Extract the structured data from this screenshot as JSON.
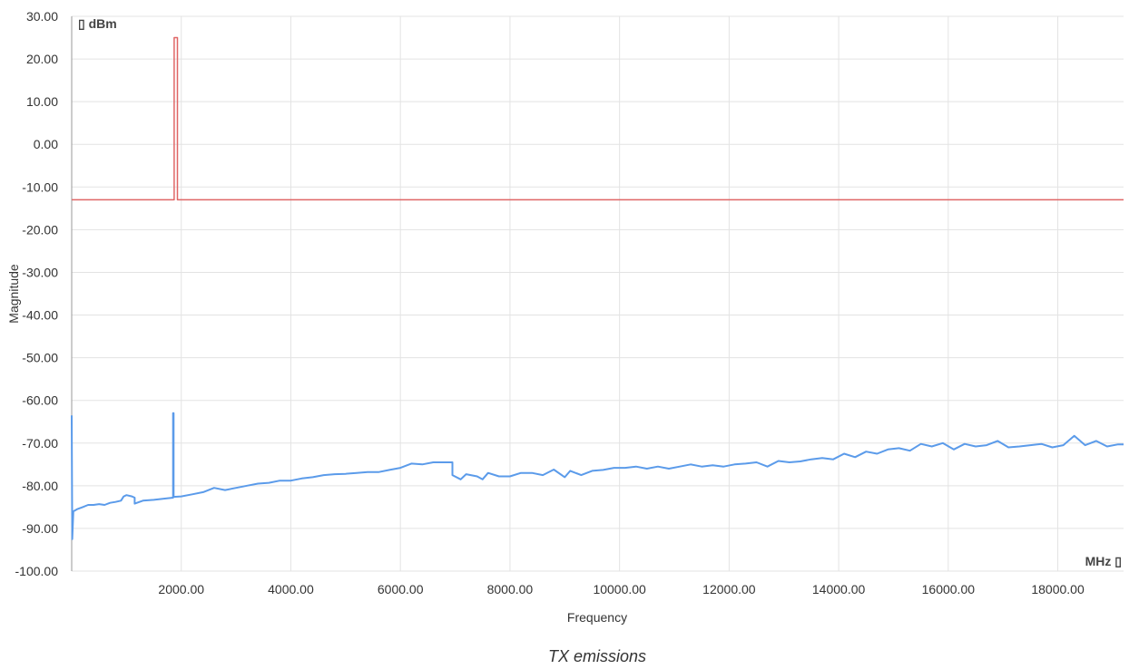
{
  "chart_data": {
    "type": "line",
    "caption": "TX emissions",
    "xlabel": "Frequency",
    "ylabel": "Magnitude",
    "y_unit": "▯ dBm",
    "x_unit": "MHz ▯",
    "xlim": [
      0,
      19200
    ],
    "ylim": [
      -100,
      30
    ],
    "grid": true,
    "x_ticks": [
      2000,
      4000,
      6000,
      8000,
      10000,
      12000,
      14000,
      16000,
      18000
    ],
    "x_tick_labels": [
      "2000.00",
      "4000.00",
      "6000.00",
      "8000.00",
      "10000.00",
      "12000.00",
      "14000.00",
      "16000.00",
      "18000.00"
    ],
    "y_ticks": [
      30,
      20,
      10,
      0,
      -10,
      -20,
      -30,
      -40,
      -50,
      -60,
      -70,
      -80,
      -90,
      -100
    ],
    "y_tick_labels": [
      "30.00",
      "20.00",
      "10.00",
      "0.00",
      "-10.00",
      "-20.00",
      "-30.00",
      "-40.00",
      "-50.00",
      "-60.00",
      "-70.00",
      "-80.00",
      "-90.00",
      "-100.00"
    ],
    "series": [
      {
        "color": "#e06666",
        "points": [
          [
            0,
            -13
          ],
          [
            1870,
            -13
          ],
          [
            1870,
            25
          ],
          [
            1930,
            25
          ],
          [
            1930,
            -13
          ],
          [
            19200,
            -13
          ]
        ]
      },
      {
        "color": "#5b9bea",
        "points": [
          [
            0,
            -63.5
          ],
          [
            10,
            -92.5
          ],
          [
            30,
            -86
          ],
          [
            100,
            -85.5
          ],
          [
            200,
            -85
          ],
          [
            300,
            -84.5
          ],
          [
            400,
            -84.5
          ],
          [
            500,
            -84.3
          ],
          [
            600,
            -84.5
          ],
          [
            700,
            -84
          ],
          [
            800,
            -83.8
          ],
          [
            900,
            -83.5
          ],
          [
            950,
            -82.5
          ],
          [
            1000,
            -82.2
          ],
          [
            1100,
            -82.5
          ],
          [
            1150,
            -82.8
          ],
          [
            1150,
            -84.2
          ],
          [
            1300,
            -83.5
          ],
          [
            1500,
            -83.3
          ],
          [
            1700,
            -83.0
          ],
          [
            1850,
            -82.8
          ],
          [
            1850,
            -63.0
          ],
          [
            1860,
            -63.0
          ],
          [
            1860,
            -82.6
          ],
          [
            2000,
            -82.5
          ],
          [
            2200,
            -82
          ],
          [
            2400,
            -81.5
          ],
          [
            2600,
            -80.5
          ],
          [
            2800,
            -81
          ],
          [
            3000,
            -80.5
          ],
          [
            3200,
            -80
          ],
          [
            3400,
            -79.5
          ],
          [
            3600,
            -79.3
          ],
          [
            3800,
            -78.8
          ],
          [
            4000,
            -78.8
          ],
          [
            4200,
            -78.3
          ],
          [
            4400,
            -78.0
          ],
          [
            4600,
            -77.5
          ],
          [
            4800,
            -77.3
          ],
          [
            5000,
            -77.2
          ],
          [
            5200,
            -77.0
          ],
          [
            5400,
            -76.8
          ],
          [
            5600,
            -76.8
          ],
          [
            5800,
            -76.3
          ],
          [
            6000,
            -75.8
          ],
          [
            6200,
            -74.8
          ],
          [
            6400,
            -75.0
          ],
          [
            6600,
            -74.5
          ],
          [
            6800,
            -74.5
          ],
          [
            6950,
            -74.5
          ],
          [
            6950,
            -77.5
          ],
          [
            7100,
            -78.5
          ],
          [
            7200,
            -77.3
          ],
          [
            7400,
            -77.8
          ],
          [
            7500,
            -78.5
          ],
          [
            7600,
            -77
          ],
          [
            7800,
            -77.8
          ],
          [
            8000,
            -77.8
          ],
          [
            8200,
            -77.0
          ],
          [
            8400,
            -77.0
          ],
          [
            8600,
            -77.5
          ],
          [
            8800,
            -76.2
          ],
          [
            9000,
            -78.0
          ],
          [
            9100,
            -76.5
          ],
          [
            9300,
            -77.5
          ],
          [
            9500,
            -76.5
          ],
          [
            9700,
            -76.3
          ],
          [
            9900,
            -75.8
          ],
          [
            10100,
            -75.8
          ],
          [
            10300,
            -75.5
          ],
          [
            10500,
            -76
          ],
          [
            10700,
            -75.5
          ],
          [
            10900,
            -76.0
          ],
          [
            11100,
            -75.5
          ],
          [
            11300,
            -75
          ],
          [
            11500,
            -75.5
          ],
          [
            11700,
            -75.2
          ],
          [
            11900,
            -75.5
          ],
          [
            12100,
            -75.0
          ],
          [
            12300,
            -74.8
          ],
          [
            12500,
            -74.5
          ],
          [
            12700,
            -75.5
          ],
          [
            12900,
            -74.2
          ],
          [
            13100,
            -74.5
          ],
          [
            13300,
            -74.3
          ],
          [
            13500,
            -73.8
          ],
          [
            13700,
            -73.5
          ],
          [
            13900,
            -73.8
          ],
          [
            14100,
            -72.5
          ],
          [
            14300,
            -73.3
          ],
          [
            14500,
            -72
          ],
          [
            14700,
            -72.5
          ],
          [
            14900,
            -71.5
          ],
          [
            15100,
            -71.2
          ],
          [
            15300,
            -71.8
          ],
          [
            15500,
            -70.2
          ],
          [
            15700,
            -70.8
          ],
          [
            15900,
            -70.0
          ],
          [
            16100,
            -71.5
          ],
          [
            16300,
            -70.2
          ],
          [
            16500,
            -70.8
          ],
          [
            16700,
            -70.5
          ],
          [
            16900,
            -69.5
          ],
          [
            17100,
            -71.0
          ],
          [
            17300,
            -70.8
          ],
          [
            17500,
            -70.5
          ],
          [
            17700,
            -70.2
          ],
          [
            17900,
            -71.0
          ],
          [
            18100,
            -70.5
          ],
          [
            18300,
            -68.3
          ],
          [
            18500,
            -70.5
          ],
          [
            18700,
            -69.5
          ],
          [
            18900,
            -70.8
          ],
          [
            19100,
            -70.3
          ],
          [
            19200,
            -70.3
          ]
        ]
      }
    ]
  }
}
